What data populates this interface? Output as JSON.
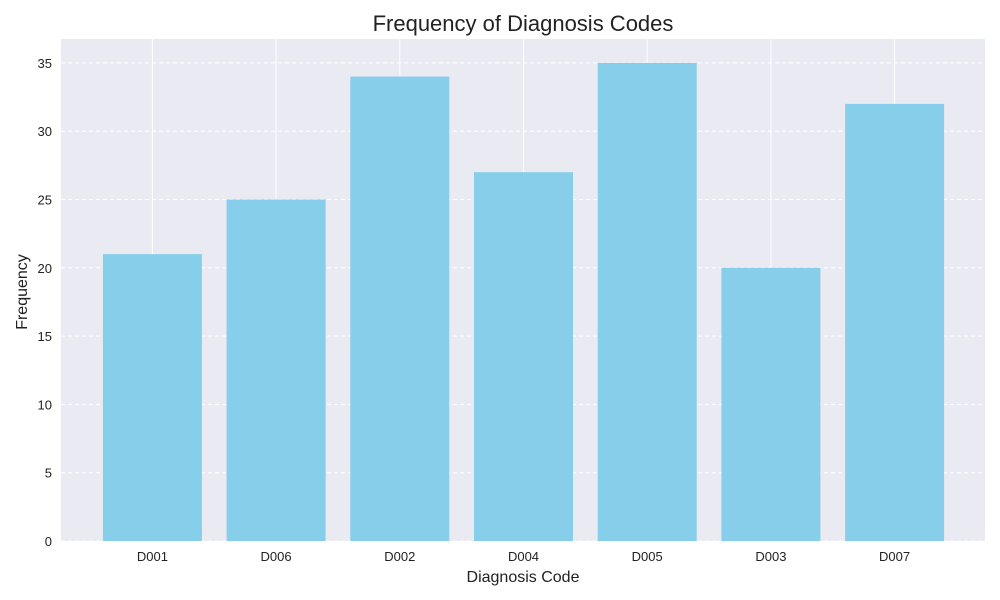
{
  "chart_data": {
    "type": "bar",
    "title": "Frequency of Diagnosis Codes",
    "xlabel": "Diagnosis Code",
    "ylabel": "Frequency",
    "categories": [
      "D001",
      "D006",
      "D002",
      "D004",
      "D005",
      "D003",
      "D007"
    ],
    "values": [
      21,
      25,
      34,
      27,
      35,
      20,
      32
    ],
    "ylim": [
      0,
      36.75
    ],
    "yticks": [
      0,
      5,
      10,
      15,
      20,
      25,
      30,
      35
    ],
    "grid": true,
    "colors": {
      "bar": "#87CEEB",
      "background": "#EAEAF2",
      "grid": "#FFFFFF"
    }
  }
}
